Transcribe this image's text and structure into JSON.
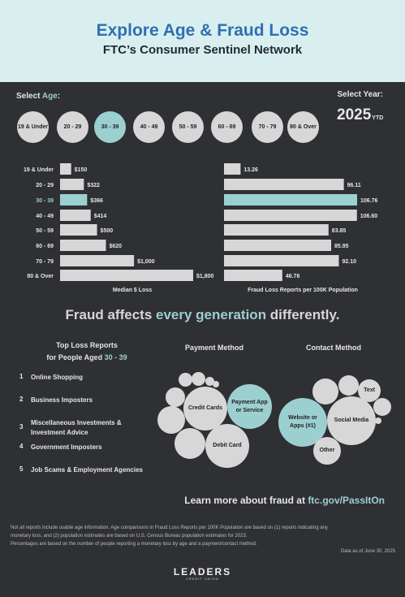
{
  "header": {
    "title": "Explore Age & Fraud Loss",
    "subtitle": "FTC’s Consumer Sentinel Network"
  },
  "controls": {
    "select_age_prefix": "Select ",
    "select_age_accent": "Age",
    "select_age_suffix": ":",
    "select_year_label": "Select Year:",
    "year_value": "2025",
    "year_suffix": "YTD",
    "age_buttons": [
      "19 & Under",
      "20 - 29",
      "30 - 39",
      "40 - 49",
      "50 - 59",
      "60 - 69",
      "70 - 79",
      "80 & Over"
    ],
    "active_age": "30 - 39"
  },
  "colors": {
    "accent": "#9ccfd0",
    "bar": "#d7d7d7",
    "background": "#2f3033",
    "header_bg": "#d9efef",
    "title": "#2f6fb2"
  },
  "chart_data": [
    {
      "type": "bar",
      "orientation": "horizontal",
      "xlabel": "Median $ Loss",
      "categories": [
        "19 & Under",
        "20 - 29",
        "30 - 39",
        "40 - 49",
        "50 - 59",
        "60 - 69",
        "70 - 79",
        "80 & Over"
      ],
      "values": [
        150,
        322,
        366,
        414,
        500,
        620,
        1000,
        1800
      ],
      "labels": [
        "$150",
        "$322",
        "$366",
        "$414",
        "$500",
        "$620",
        "$1,000",
        "$1,800"
      ],
      "xlim": [
        0,
        1800
      ],
      "highlight": "30 - 39"
    },
    {
      "type": "bar",
      "orientation": "horizontal",
      "xlabel": "Fraud Loss Reports per 100K Population",
      "categories": [
        "19 & Under",
        "20 - 29",
        "30 - 39",
        "40 - 49",
        "50 - 59",
        "60 - 69",
        "70 - 79",
        "80 & Over"
      ],
      "values": [
        13.26,
        96.11,
        106.76,
        106.6,
        83.85,
        85.95,
        92.1,
        46.76
      ],
      "labels": [
        "13.26",
        "96.11",
        "106.76",
        "106.60",
        "83.85",
        "85.95",
        "92.10",
        "46.76"
      ],
      "xlim": [
        0,
        106.76
      ],
      "highlight": "30 - 39"
    }
  ],
  "tagline": {
    "prefix": "Fraud affects ",
    "accent": "every generation",
    "suffix": " differently."
  },
  "top_loss": {
    "title_line1": "Top Loss Reports",
    "title_line2_prefix": "for People Aged ",
    "title_line2_accent": "30 - 39",
    "items": [
      {
        "num": "1",
        "text": "Online Shopping"
      },
      {
        "num": "2",
        "text": "Business Imposters"
      },
      {
        "num": "3",
        "text": "Miscellaneous Investments &",
        "text2": "Investment Advice"
      },
      {
        "num": "4",
        "text": "Government Imposters"
      },
      {
        "num": "5",
        "text": "Job Scams & Employment Agencies"
      }
    ]
  },
  "payment": {
    "title": "Payment Method",
    "bubbles": [
      "Credit Cards",
      "Payment App",
      "or Service",
      "Debit Card"
    ]
  },
  "contact": {
    "title": "Contact Method",
    "bubbles": [
      "Website or",
      "Apps (#1)",
      "Social Media",
      "Text",
      "Other"
    ]
  },
  "learn": {
    "prefix": "Learn more about fraud at ",
    "accent": "ftc.gov/PassItOn"
  },
  "footer": {
    "line1": "Not all reports include usable age information.  Age comparisons in Fraud Loss Reports per 100K Population are based on (1) reports indicating any",
    "line2": "monetary loss, and (2) population estimates are based on U.S. Census Bureau population estimates for 2023.",
    "line3": "Percentages are based on the number of people reporting a monetary loss by age and a payment/contact method.",
    "as_of": "Data as of June 30, 2025",
    "logo": "LEADERS",
    "logo_sub": "CREDIT UNION"
  }
}
